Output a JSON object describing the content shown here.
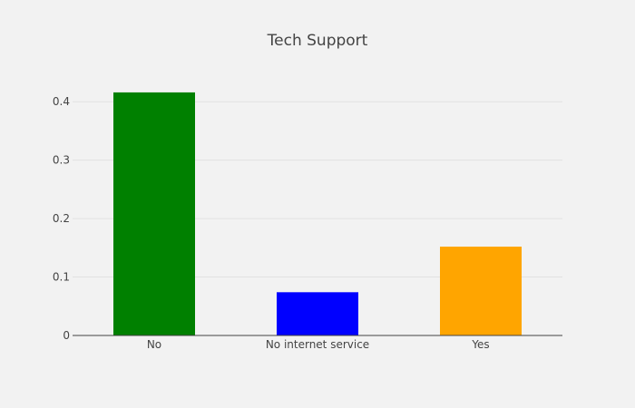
{
  "chart_data": {
    "type": "bar",
    "title": "Tech Support",
    "xlabel": "",
    "ylabel": "",
    "categories": [
      "No",
      "No internet service",
      "Yes"
    ],
    "values": [
      0.416,
      0.074,
      0.152
    ],
    "colors": [
      "#008000",
      "#0000ff",
      "#ffa500"
    ],
    "ylim": [
      0,
      0.45
    ],
    "yticks": [
      0,
      0.1,
      0.2,
      0.3,
      0.4
    ],
    "ytick_labels": [
      "0",
      "0.1",
      "0.2",
      "0.3",
      "0.4"
    ],
    "grid": true,
    "legend": false
  }
}
